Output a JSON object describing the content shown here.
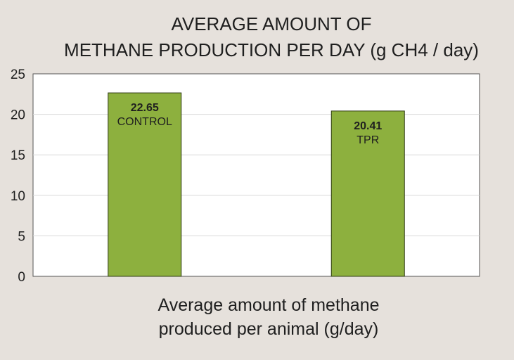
{
  "chart_data": {
    "type": "bar",
    "title_lines": [
      "AVERAGE AMOUNT OF",
      "METHANE PRODUCTION PER DAY (g CH4 / day)"
    ],
    "xlabel_lines": [
      "Average amount of methane",
      "produced per animal (g/day)"
    ],
    "ylabel": "",
    "categories": [
      "CONTROL",
      "TPR"
    ],
    "values": [
      22.65,
      20.41
    ],
    "value_labels": [
      "22.65",
      "20.41"
    ],
    "ylim": [
      0,
      25
    ],
    "yticks": [
      0,
      5,
      10,
      15,
      20,
      25
    ],
    "grid": true,
    "legend": "none",
    "colors": {
      "bar": "#8db03e",
      "bar_border": "#2f3a14",
      "plot_bg": "#ffffff",
      "page_bg": "#e6e1dc",
      "grid": "#d9d9d9"
    }
  }
}
